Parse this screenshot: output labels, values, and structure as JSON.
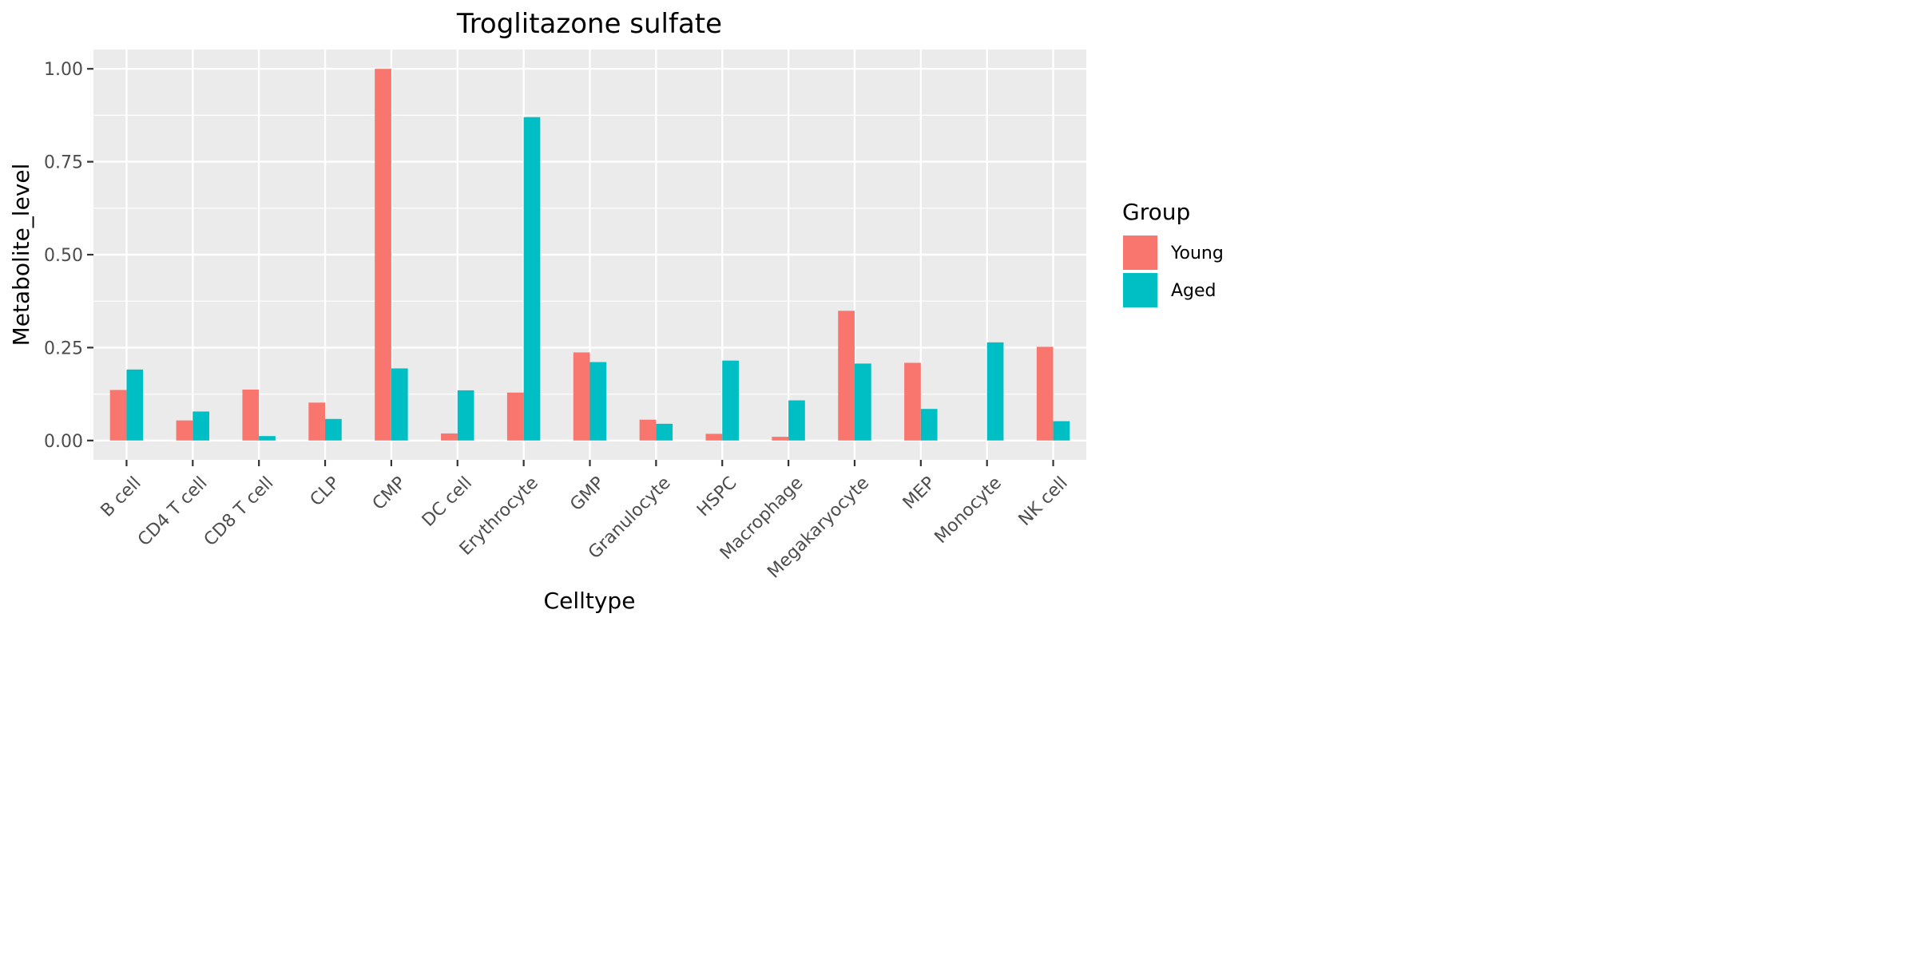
{
  "chart_data": {
    "type": "bar",
    "title": "Troglitazone sulfate",
    "xlabel": "Celltype",
    "ylabel": "Metabolite_level",
    "categories": [
      "B cell",
      "CD4 T cell",
      "CD8 T cell",
      "CLP",
      "CMP",
      "DC cell",
      "Erythrocyte",
      "GMP",
      "Granulocyte",
      "HSPC",
      "Macrophage",
      "Megakaryocyte",
      "MEP",
      "Monocyte",
      "NK cell"
    ],
    "series": [
      {
        "name": "Young",
        "color": "#F8766D",
        "values": [
          0.136,
          0.054,
          0.137,
          0.102,
          1.0,
          0.019,
          0.129,
          0.237,
          0.056,
          0.018,
          0.01,
          0.349,
          0.209,
          0.0,
          0.252
        ]
      },
      {
        "name": "Aged",
        "color": "#00BFC4",
        "values": [
          0.191,
          0.078,
          0.012,
          0.058,
          0.194,
          0.135,
          0.87,
          0.211,
          0.045,
          0.215,
          0.108,
          0.207,
          0.085,
          0.264,
          0.052
        ]
      }
    ],
    "ylim": [
      -0.052,
      1.052
    ],
    "yticks": [
      0.0,
      0.25,
      0.5,
      0.75,
      1.0
    ],
    "ytick_labels": [
      "0.00",
      "0.25",
      "0.50",
      "0.75",
      "1.00"
    ],
    "grid": true,
    "legend": {
      "title": "Group",
      "position": "right"
    },
    "panel_color": "#EBEBEB",
    "grid_color": "#FFFFFF"
  }
}
